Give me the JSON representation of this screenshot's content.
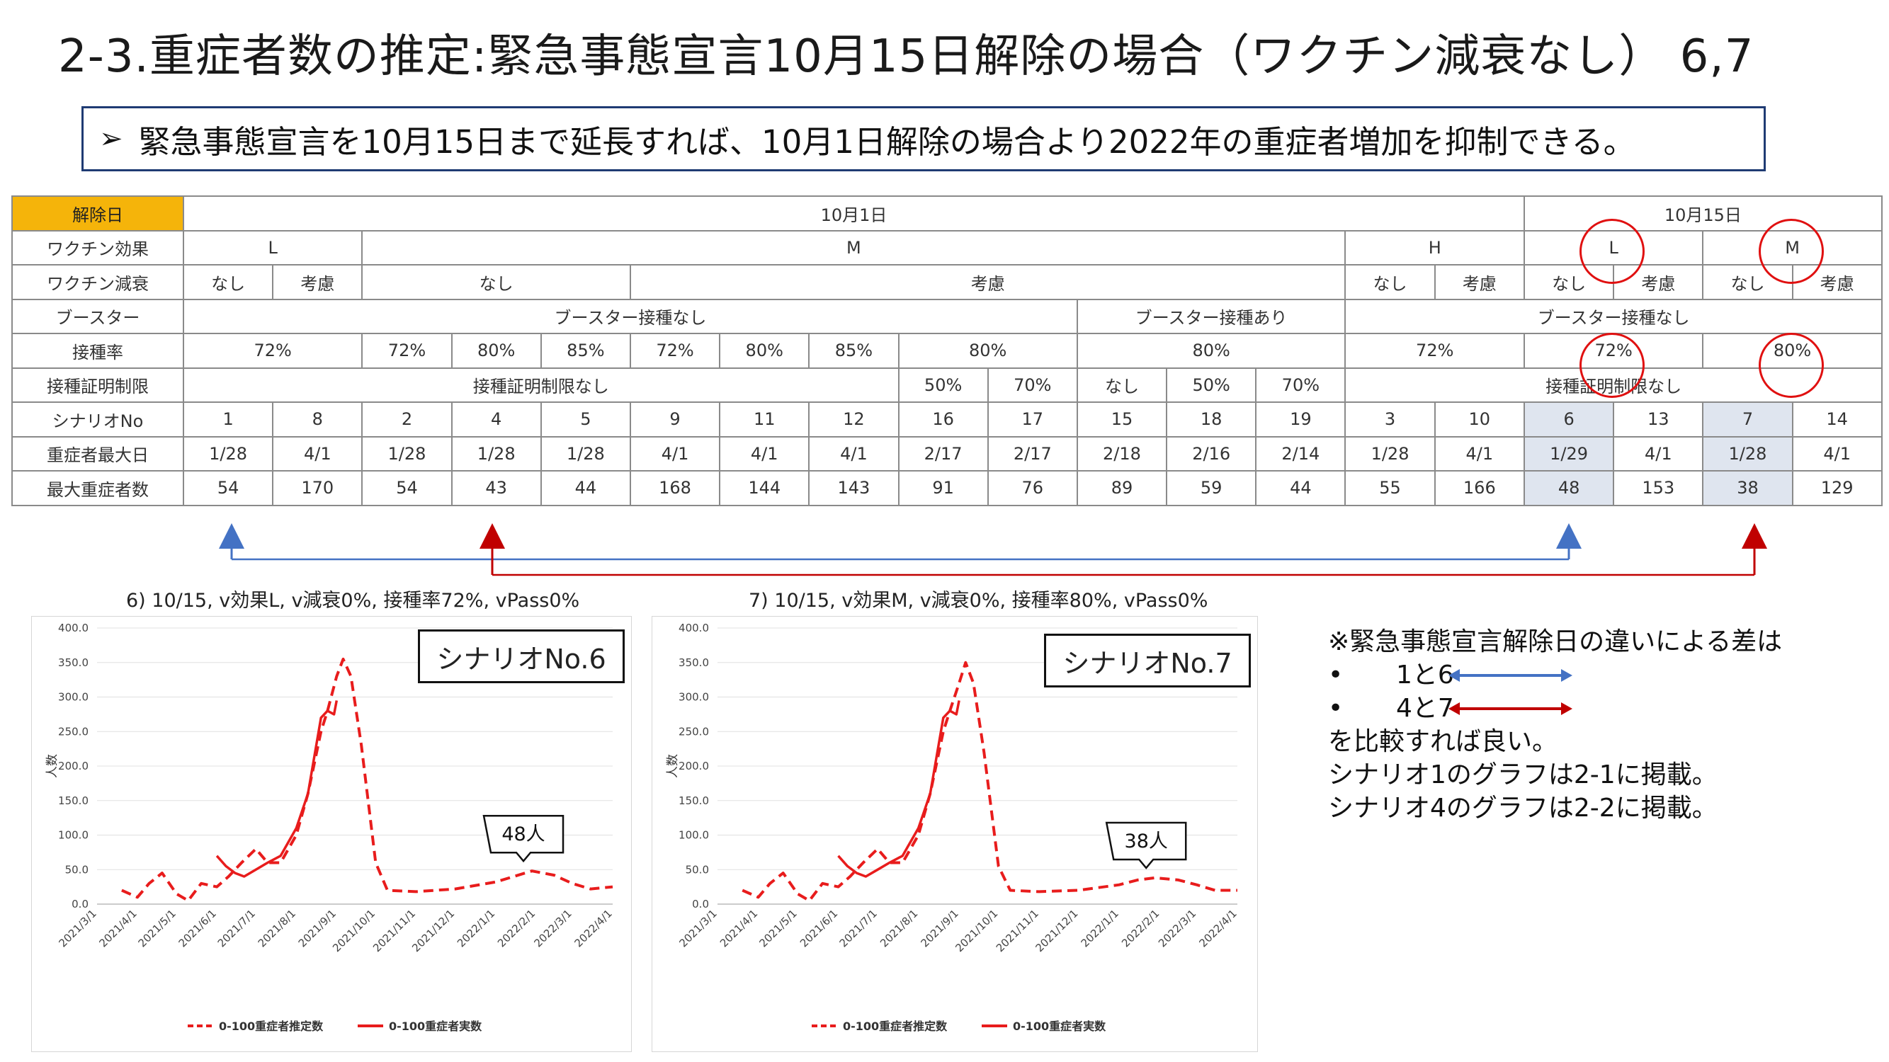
{
  "title": "2-3.重症者数の推定:緊急事態宣言10月15日解除の場合（ワクチン減衰なし）  6,7",
  "highlight": {
    "arrow": "➢",
    "text": "緊急事態宣言を10月15日まで延長すれば、10月1日解除の場合より2022年の重症者増加を抑制できる。"
  },
  "table": {
    "labels": {
      "release": "解除日",
      "effect": "ワクチン効果",
      "decay": "ワクチン減衰",
      "booster": "ブースター",
      "rate": "接種率",
      "cert": "接種証明制限",
      "scenario": "シナリオNo",
      "peak_date": "重症者最大日",
      "peak_count": "最大重症者数"
    },
    "release_oct1": "10月1日",
    "release_oct15": "10月15日",
    "effect": {
      "L": "L",
      "M": "M",
      "H": "H",
      "L2": "L",
      "M2": "M"
    },
    "decay": {
      "nashi": "なし",
      "kouryo": "考慮"
    },
    "booster": {
      "none": "ブースター接種なし",
      "yes": "ブースター接種あり"
    },
    "rates": [
      "72%",
      "72%",
      "80%",
      "85%",
      "72%",
      "80%",
      "85%",
      "80%",
      "80%",
      "72%",
      "72%",
      "80%"
    ],
    "cert": {
      "none": "接種証明制限なし",
      "p50": "50%",
      "p70": "70%",
      "nashi": "なし",
      "none2": "接種証明制限なし"
    },
    "scenarios": [
      "1",
      "8",
      "2",
      "4",
      "5",
      "9",
      "11",
      "12",
      "16",
      "17",
      "15",
      "18",
      "19",
      "3",
      "10",
      "6",
      "13",
      "7",
      "14"
    ],
    "peak_dates": [
      "1/28",
      "4/1",
      "1/28",
      "1/28",
      "1/28",
      "4/1",
      "4/1",
      "4/1",
      "2/17",
      "2/17",
      "2/18",
      "2/16",
      "2/14",
      "1/28",
      "4/1",
      "1/29",
      "4/1",
      "1/28",
      "4/1"
    ],
    "peak_counts": [
      "54",
      "170",
      "54",
      "43",
      "44",
      "168",
      "144",
      "143",
      "91",
      "76",
      "89",
      "59",
      "44",
      "55",
      "166",
      "48",
      "153",
      "38",
      "129"
    ]
  },
  "colors": {
    "highlight_orange": "#f5b40a",
    "shade": "#dfe5ef",
    "red": "#e01010",
    "blue": "#4472c4",
    "darkred": "#c00000",
    "series": "#e81c1c"
  },
  "charts": {
    "left": {
      "caption": "6) 10/15, v効果L, v減衰0%, 接種率72%, vPass0%",
      "scenario_label": "シナリオNo.6",
      "callout": "48人"
    },
    "right": {
      "caption": "7) 10/15, v効果M, v減衰0%, 接種率80%, vPass0%",
      "scenario_label": "シナリオNo.7",
      "callout": "38人"
    }
  },
  "notes": {
    "line1": "※緊急事態宣言解除日の違いによる差は",
    "bullet1": "1と6",
    "bullet2": "4と7",
    "line2": "を比較すれば良い。",
    "line3": "シナリオ1のグラフは2-1に掲載。",
    "line4": "シナリオ4のグラフは2-2に掲載。",
    "bullet_char": "•"
  },
  "chart_data": [
    {
      "type": "line",
      "title": "",
      "ylabel": "人数",
      "ylim": [
        0,
        400
      ],
      "yticks": [
        "400.0",
        "350.0",
        "300.0",
        "250.0",
        "200.0",
        "150.0",
        "100.0",
        "50.0",
        "0.0"
      ],
      "x_ticks": [
        "2021/3/1",
        "2021/4/1",
        "2021/5/1",
        "2021/6/1",
        "2021/7/1",
        "2021/8/1",
        "2021/9/1",
        "2021/10/1",
        "2021/11/1",
        "2021/12/1",
        "2022/1/1",
        "2022/2/1",
        "2022/3/1",
        "2022/4/1"
      ],
      "series": [
        {
          "name": "0-100重症者推定数",
          "style": "dashed",
          "x": [
            "2021/3/20",
            "2021/4/1",
            "2021/4/10",
            "2021/4/20",
            "2021/5/1",
            "2021/5/10",
            "2021/5/20",
            "2021/6/1",
            "2021/6/10",
            "2021/6/20",
            "2021/7/1",
            "2021/7/10",
            "2021/7/20",
            "2021/8/1",
            "2021/8/10",
            "2021/8/20",
            "2021/8/25",
            "2021/9/1",
            "2021/9/6",
            "2021/9/12",
            "2021/9/20",
            "2021/10/1",
            "2021/10/10",
            "2021/11/1",
            "2021/12/1",
            "2022/1/1",
            "2022/1/15",
            "2022/1/29",
            "2022/2/15",
            "2022/3/1",
            "2022/3/15",
            "2022/4/1"
          ],
          "values": [
            20,
            10,
            30,
            45,
            15,
            5,
            30,
            25,
            40,
            60,
            80,
            60,
            60,
            100,
            160,
            250,
            280,
            330,
            355,
            330,
            230,
            60,
            20,
            18,
            22,
            32,
            40,
            48,
            42,
            30,
            22,
            25
          ]
        },
        {
          "name": "0-100重症者実数",
          "style": "solid",
          "x": [
            "2021/6/1",
            "2021/6/8",
            "2021/6/15",
            "2021/6/22",
            "2021/7/1",
            "2021/7/10",
            "2021/7/20",
            "2021/8/1",
            "2021/8/10",
            "2021/8/20",
            "2021/8/25",
            "2021/8/30",
            "2021/9/1"
          ],
          "values": [
            70,
            55,
            45,
            40,
            50,
            60,
            70,
            110,
            160,
            270,
            280,
            275,
            295
          ]
        }
      ]
    },
    {
      "type": "line",
      "title": "",
      "ylabel": "人数",
      "ylim": [
        0,
        400
      ],
      "yticks": [
        "400.0",
        "350.0",
        "300.0",
        "250.0",
        "200.0",
        "150.0",
        "100.0",
        "50.0",
        "0.0"
      ],
      "x_ticks": [
        "2021/3/1",
        "2021/4/1",
        "2021/5/1",
        "2021/6/1",
        "2021/7/1",
        "2021/8/1",
        "2021/9/1",
        "2021/10/1",
        "2021/11/1",
        "2021/12/1",
        "2022/1/1",
        "2022/2/1",
        "2022/3/1",
        "2022/4/1"
      ],
      "series": [
        {
          "name": "0-100重症者推定数",
          "style": "dashed",
          "x": [
            "2021/3/20",
            "2021/4/1",
            "2021/4/10",
            "2021/4/20",
            "2021/5/1",
            "2021/5/10",
            "2021/5/20",
            "2021/6/1",
            "2021/6/10",
            "2021/6/20",
            "2021/7/1",
            "2021/7/10",
            "2021/7/20",
            "2021/8/1",
            "2021/8/10",
            "2021/8/20",
            "2021/8/25",
            "2021/9/1",
            "2021/9/6",
            "2021/9/12",
            "2021/9/20",
            "2021/10/1",
            "2021/10/10",
            "2021/11/1",
            "2021/12/1",
            "2022/1/1",
            "2022/1/15",
            "2022/1/28",
            "2022/2/15",
            "2022/3/1",
            "2022/3/15",
            "2022/4/1"
          ],
          "values": [
            20,
            10,
            30,
            45,
            15,
            5,
            30,
            25,
            40,
            60,
            80,
            60,
            60,
            100,
            160,
            250,
            280,
            320,
            350,
            320,
            220,
            55,
            20,
            18,
            20,
            28,
            35,
            38,
            35,
            28,
            20,
            20
          ]
        },
        {
          "name": "0-100重症者実数",
          "style": "solid",
          "x": [
            "2021/6/1",
            "2021/6/8",
            "2021/6/15",
            "2021/6/22",
            "2021/7/1",
            "2021/7/10",
            "2021/7/20",
            "2021/8/1",
            "2021/8/10",
            "2021/8/20",
            "2021/8/25",
            "2021/8/30",
            "2021/9/1"
          ],
          "values": [
            70,
            55,
            45,
            40,
            50,
            60,
            70,
            110,
            160,
            270,
            280,
            275,
            295
          ]
        }
      ]
    }
  ]
}
